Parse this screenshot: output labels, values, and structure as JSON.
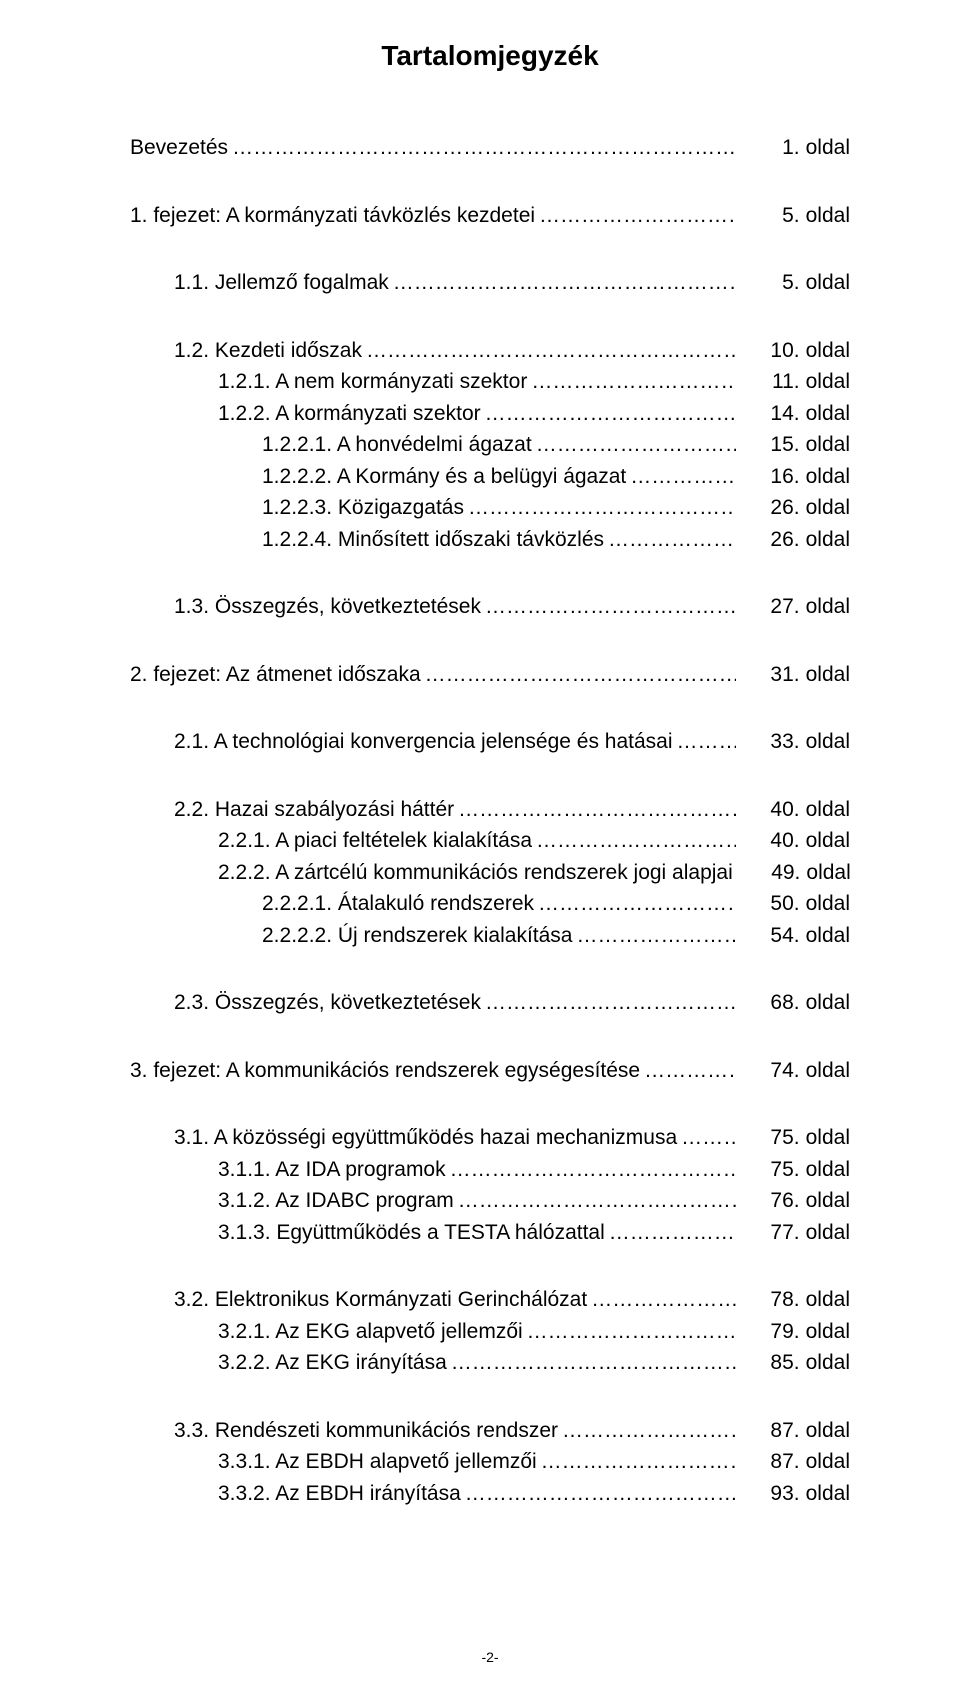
{
  "title": "Tartalomjegyzék",
  "page_unit": "oldal",
  "footer": "-2-",
  "blocks": [
    [
      {
        "indent": 0,
        "label": "Bevezetés",
        "page": "1."
      }
    ],
    [
      {
        "indent": 0,
        "label": "1. fejezet: A kormányzati távközlés kezdetei",
        "page": "5."
      }
    ],
    [
      {
        "indent": 1,
        "label": "1.1. Jellemző fogalmak",
        "page": "5."
      }
    ],
    [
      {
        "indent": 1,
        "label": "1.2. Kezdeti időszak",
        "page": "10."
      },
      {
        "indent": 2,
        "label": "1.2.1. A nem kormányzati szektor",
        "page": "11."
      },
      {
        "indent": 2,
        "label": "1.2.2. A kormányzati szektor",
        "page": "14."
      },
      {
        "indent": 3,
        "label": "1.2.2.1. A honvédelmi ágazat",
        "page": "15."
      },
      {
        "indent": 3,
        "label": "1.2.2.2. A Kormány és a belügyi ágazat",
        "page": "16."
      },
      {
        "indent": 3,
        "label": "1.2.2.3. Közigazgatás",
        "page": "26."
      },
      {
        "indent": 3,
        "label": "1.2.2.4. Minősített időszaki távközlés",
        "page": "26."
      }
    ],
    [
      {
        "indent": 1,
        "label": "1.3. Összegzés, következtetések",
        "page": "27."
      }
    ],
    [
      {
        "indent": 0,
        "label": "2. fejezet: Az átmenet időszaka",
        "page": "31."
      }
    ],
    [
      {
        "indent": 1,
        "label": "2.1. A technológiai konvergencia jelensége és hatásai",
        "page": "33."
      }
    ],
    [
      {
        "indent": 1,
        "label": "2.2. Hazai szabályozási háttér",
        "page": "40."
      },
      {
        "indent": 2,
        "label": "2.2.1. A piaci feltételek kialakítása",
        "page": "40."
      },
      {
        "indent": 2,
        "label": "2.2.2. A zártcélú kommunikációs rendszerek jogi alapjai",
        "page": "49."
      },
      {
        "indent": 3,
        "label": "2.2.2.1. Átalakuló rendszerek",
        "page": "50."
      },
      {
        "indent": 3,
        "label": "2.2.2.2. Új rendszerek kialakítása",
        "page": "54."
      }
    ],
    [
      {
        "indent": 1,
        "label": "2.3. Összegzés, következtetések",
        "page": "68."
      }
    ],
    [
      {
        "indent": 0,
        "label": "3. fejezet: A kommunikációs rendszerek egységesítése",
        "page": "74."
      }
    ],
    [
      {
        "indent": 1,
        "label": "3.1. A közösségi együttműködés hazai mechanizmusa",
        "page": "75."
      },
      {
        "indent": 2,
        "label": "3.1.1. Az IDA programok",
        "page": "75."
      },
      {
        "indent": 2,
        "label": "3.1.2. Az IDABC program",
        "page": "76."
      },
      {
        "indent": 2,
        "label": "3.1.3. Együttműködés a TESTA hálózattal",
        "page": "77."
      }
    ],
    [
      {
        "indent": 1,
        "label": "3.2. Elektronikus Kormányzati Gerinchálózat",
        "page": "78."
      },
      {
        "indent": 2,
        "label": "3.2.1. Az EKG alapvető jellemzői",
        "page": "79."
      },
      {
        "indent": 2,
        "label": "3.2.2. Az EKG irányítása",
        "page": "85."
      }
    ],
    [
      {
        "indent": 1,
        "label": "3.3. Rendészeti kommunikációs rendszer",
        "page": "87."
      },
      {
        "indent": 2,
        "label": "3.3.1. Az EBDH alapvető jellemzői",
        "page": "87."
      },
      {
        "indent": 2,
        "label": "3.3.2. Az EBDH irányítása",
        "page": "93."
      }
    ]
  ]
}
